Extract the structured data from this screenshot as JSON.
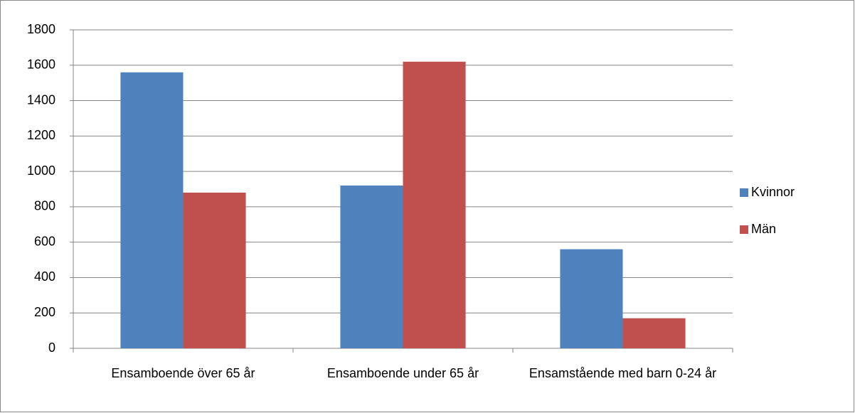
{
  "chart_data": {
    "type": "bar",
    "categories": [
      "Ensamboende över 65 år",
      "Ensamboende under 65 år",
      "Ensamstående med barn 0-24 år"
    ],
    "series": [
      {
        "name": "Kvinnor",
        "color": "#4f81bd",
        "values": [
          1560,
          920,
          560
        ]
      },
      {
        "name": "Män",
        "color": "#c0504d",
        "values": [
          880,
          1620,
          170
        ]
      }
    ],
    "ylim": [
      0,
      1800
    ],
    "yticks": [
      0,
      200,
      400,
      600,
      800,
      1000,
      1200,
      1400,
      1600,
      1800
    ],
    "grid": true,
    "legend": "right"
  }
}
